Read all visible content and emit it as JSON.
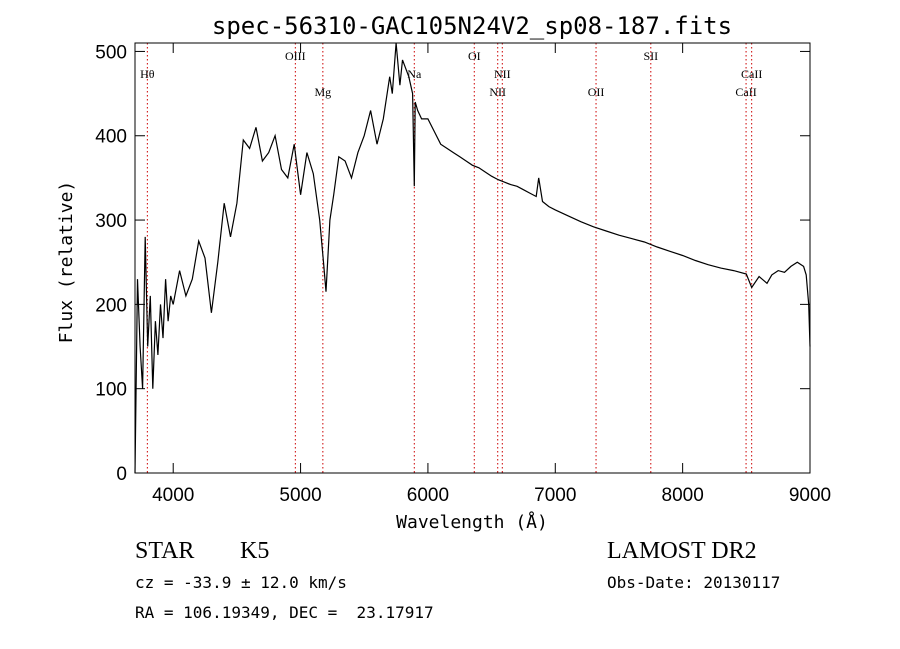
{
  "chart_data": {
    "type": "line",
    "title": "spec-56310-GAC105N24V2_sp08-187.fits",
    "xlabel": "Wavelength (Å)",
    "ylabel": "Flux (relative)",
    "xlim": [
      3700,
      9000
    ],
    "ylim": [
      0,
      510
    ],
    "x_ticks": [
      4000,
      5000,
      6000,
      7000,
      8000,
      9000
    ],
    "y_ticks": [
      0,
      100,
      200,
      300,
      400,
      500
    ],
    "grid": false,
    "series": [
      {
        "x": [
          3700,
          3720,
          3740,
          3760,
          3780,
          3800,
          3820,
          3840,
          3860,
          3880,
          3900,
          3920,
          3940,
          3960,
          3980,
          4000,
          4050,
          4100,
          4150,
          4200,
          4250,
          4300,
          4350,
          4400,
          4450,
          4500,
          4550,
          4600,
          4650,
          4700,
          4750,
          4800,
          4850,
          4900,
          4950,
          5000,
          5050,
          5100,
          5150,
          5180,
          5200,
          5230,
          5260,
          5300,
          5350,
          5400,
          5450,
          5500,
          5550,
          5600,
          5650,
          5700,
          5720,
          5750,
          5780,
          5800,
          5850,
          5880,
          5893,
          5900,
          5920,
          5950,
          6000,
          6050,
          6100,
          6150,
          6200,
          6250,
          6300,
          6350,
          6400,
          6450,
          6500,
          6550,
          6600,
          6650,
          6700,
          6750,
          6800,
          6850,
          6870,
          6900,
          6950,
          7000,
          7100,
          7200,
          7300,
          7400,
          7500,
          7600,
          7700,
          7800,
          7900,
          8000,
          8100,
          8200,
          8300,
          8400,
          8500,
          8542,
          8600,
          8662,
          8700,
          8750,
          8800,
          8850,
          8900,
          8950,
          8970,
          8990,
          9000
        ],
        "y": [
          0,
          230,
          150,
          100,
          280,
          150,
          210,
          100,
          180,
          140,
          200,
          160,
          230,
          180,
          210,
          200,
          240,
          210,
          230,
          275,
          255,
          190,
          250,
          320,
          280,
          320,
          395,
          385,
          410,
          370,
          380,
          400,
          360,
          350,
          390,
          330,
          380,
          355,
          300,
          250,
          215,
          300,
          330,
          375,
          370,
          350,
          380,
          400,
          430,
          390,
          420,
          470,
          450,
          510,
          460,
          490,
          470,
          450,
          340,
          440,
          430,
          420,
          420,
          405,
          390,
          385,
          380,
          375,
          370,
          365,
          362,
          357,
          352,
          348,
          345,
          342,
          340,
          336,
          332,
          328,
          350,
          322,
          316,
          312,
          305,
          298,
          292,
          287,
          282,
          278,
          274,
          268,
          263,
          258,
          252,
          247,
          243,
          240,
          236,
          220,
          233,
          225,
          235,
          240,
          238,
          245,
          250,
          245,
          235,
          200,
          150
        ]
      }
    ],
    "annotations": [
      {
        "label": "Hθ",
        "x": 3797,
        "level": 1
      },
      {
        "label": "OIII",
        "x": 4959,
        "level": 0
      },
      {
        "label": "Mg",
        "x": 5175,
        "level": 2
      },
      {
        "label": "Na",
        "x": 5893,
        "level": 1
      },
      {
        "label": "OI",
        "x": 6364,
        "level": 0
      },
      {
        "label": "NII",
        "x": 6548,
        "level": 2
      },
      {
        "label": "NII",
        "x": 6584,
        "level": 1
      },
      {
        "label": "OII",
        "x": 7320,
        "level": 2
      },
      {
        "label": "SII",
        "x": 7750,
        "level": 0
      },
      {
        "label": "CaII",
        "x": 8498,
        "level": 2
      },
      {
        "label": "CaII",
        "x": 8542,
        "level": 1
      }
    ]
  },
  "footer": {
    "object_class": "STAR",
    "subclass": "K5",
    "redshift": "cz = -33.9 ± 12.0 km/s",
    "coordinates": "RA = 106.19349, DEC =  23.17917",
    "survey": "LAMOST DR2",
    "obs_date": "Obs-Date: 20130117"
  },
  "colors": {
    "line": "#000000",
    "marker_lines": "#cc0000",
    "background": "#ffffff"
  }
}
